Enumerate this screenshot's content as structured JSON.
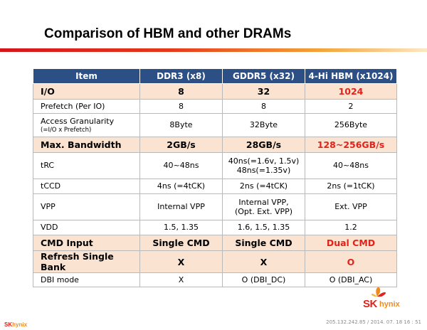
{
  "title": "Comparison of HBM and other DRAMs",
  "table": {
    "headers": [
      "Item",
      "DDR3 (x8)",
      "GDDR5 (x32)",
      "4-Hi HBM (x1024)"
    ],
    "rows": [
      {
        "item": "I/O",
        "item_note": "",
        "ddr3": "8",
        "gddr5": "32",
        "hbm": "1024"
      },
      {
        "item": "Prefetch (Per IO)",
        "item_note": "",
        "ddr3": "8",
        "gddr5": "8",
        "hbm": "2"
      },
      {
        "item": "Access Granularity",
        "item_note": "(=I/O x Prefetch)",
        "ddr3": "8Byte",
        "gddr5": "32Byte",
        "hbm": "256Byte"
      },
      {
        "item": "Max. Bandwidth",
        "item_note": "",
        "ddr3": "2GB/s",
        "gddr5": "28GB/s",
        "hbm": "128~256GB/s"
      },
      {
        "item": "tRC",
        "item_note": "",
        "ddr3": "40~48ns",
        "gddr5": "40ns(=1.6v, 1.5v)",
        "gddr5_2": "48ns(=1.35v)",
        "hbm": "40~48ns"
      },
      {
        "item": "tCCD",
        "item_note": "",
        "ddr3": "4ns (=4tCK)",
        "gddr5": "2ns (=4tCK)",
        "hbm": "2ns (=1tCK)"
      },
      {
        "item": "VPP",
        "item_note": "",
        "ddr3": "Internal VPP",
        "gddr5": "Internal VPP,",
        "gddr5_2": "(Opt. Ext. VPP)",
        "hbm": "Ext. VPP"
      },
      {
        "item": "VDD",
        "item_note": "",
        "ddr3": "1.5, 1.35",
        "gddr5": "1.6, 1.5, 1.35",
        "hbm": "1.2"
      },
      {
        "item": "CMD Input",
        "item_note": "",
        "ddr3": "Single CMD",
        "gddr5": "Single CMD",
        "hbm": "Dual CMD"
      },
      {
        "item": "Refresh Single Bank",
        "item_note": "",
        "ddr3": "X",
        "gddr5": "X",
        "hbm": "O"
      },
      {
        "item": "DBI mode",
        "item_note": "",
        "ddr3": "X",
        "gddr5": "O (DBI_DC)",
        "hbm": "O (DBI_AC)"
      }
    ]
  },
  "logo": {
    "sk": "SK",
    "hynix": "hynix"
  },
  "footer": {
    "logo_sk": "SK",
    "logo_hynix": "hynix",
    "stamp": "205.132.242.85 / 2014. 07. 18  16 : 51"
  },
  "colors": {
    "header_bg": "#2c4f86",
    "highlight_bg": "#fbe3d1",
    "accent_red": "#e0231b",
    "brand_orange": "#f28a1a"
  }
}
